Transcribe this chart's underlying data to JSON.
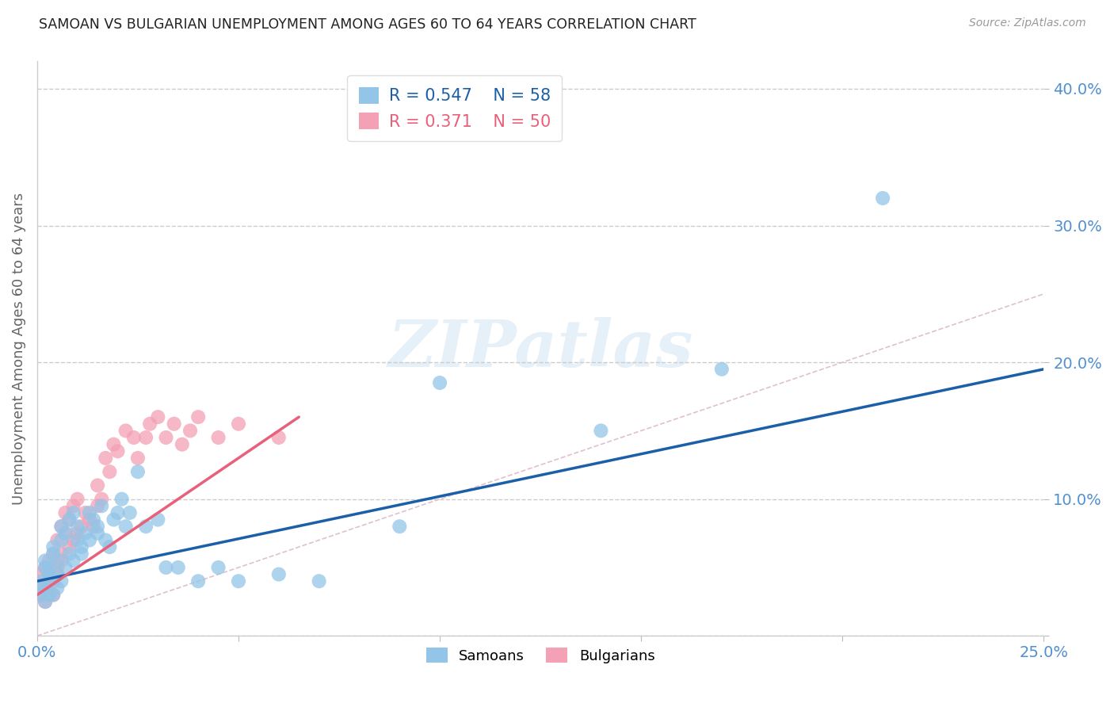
{
  "title": "SAMOAN VS BULGARIAN UNEMPLOYMENT AMONG AGES 60 TO 64 YEARS CORRELATION CHART",
  "source": "Source: ZipAtlas.com",
  "ylabel": "Unemployment Among Ages 60 to 64 years",
  "xlim": [
    0.0,
    0.25
  ],
  "ylim": [
    0.0,
    0.42
  ],
  "watermark_text": "ZIPatlas",
  "samoan_color": "#92C5E8",
  "bulgarian_color": "#F4A0B5",
  "samoan_line_color": "#1A5FA8",
  "bulgarian_line_color": "#E8607A",
  "diag_line_color": "#DDB8CC",
  "background_color": "#FFFFFF",
  "grid_color": "#CCCCCC",
  "tick_label_color": "#5090D0",
  "title_color": "#222222",
  "ylabel_color": "#666666",
  "legend_R_samoan": "R = 0.547",
  "legend_N_samoan": "N = 58",
  "legend_R_bulg": "R = 0.371",
  "legend_N_bulg": "N = 50",
  "samoans_x": [
    0.001,
    0.002,
    0.001,
    0.003,
    0.002,
    0.001,
    0.003,
    0.004,
    0.002,
    0.003,
    0.004,
    0.005,
    0.003,
    0.005,
    0.004,
    0.006,
    0.005,
    0.006,
    0.007,
    0.006,
    0.008,
    0.007,
    0.009,
    0.008,
    0.01,
    0.009,
    0.011,
    0.01,
    0.012,
    0.011,
    0.013,
    0.014,
    0.013,
    0.015,
    0.016,
    0.015,
    0.017,
    0.018,
    0.019,
    0.02,
    0.022,
    0.021,
    0.023,
    0.025,
    0.027,
    0.03,
    0.032,
    0.035,
    0.04,
    0.045,
    0.05,
    0.06,
    0.07,
    0.09,
    0.1,
    0.14,
    0.17,
    0.21
  ],
  "samoans_y": [
    0.03,
    0.025,
    0.04,
    0.03,
    0.05,
    0.035,
    0.045,
    0.03,
    0.055,
    0.04,
    0.06,
    0.035,
    0.05,
    0.045,
    0.065,
    0.04,
    0.055,
    0.07,
    0.05,
    0.08,
    0.06,
    0.075,
    0.055,
    0.085,
    0.07,
    0.09,
    0.065,
    0.08,
    0.075,
    0.06,
    0.07,
    0.085,
    0.09,
    0.08,
    0.095,
    0.075,
    0.07,
    0.065,
    0.085,
    0.09,
    0.08,
    0.1,
    0.09,
    0.12,
    0.08,
    0.085,
    0.05,
    0.05,
    0.04,
    0.05,
    0.04,
    0.045,
    0.04,
    0.08,
    0.185,
    0.15,
    0.195,
    0.32
  ],
  "bulgarians_x": [
    0.001,
    0.002,
    0.001,
    0.002,
    0.003,
    0.002,
    0.003,
    0.004,
    0.003,
    0.004,
    0.005,
    0.004,
    0.005,
    0.006,
    0.005,
    0.006,
    0.007,
    0.006,
    0.008,
    0.007,
    0.009,
    0.008,
    0.01,
    0.009,
    0.011,
    0.01,
    0.012,
    0.013,
    0.014,
    0.015,
    0.015,
    0.016,
    0.017,
    0.018,
    0.019,
    0.02,
    0.022,
    0.024,
    0.025,
    0.027,
    0.028,
    0.03,
    0.032,
    0.034,
    0.036,
    0.038,
    0.04,
    0.045,
    0.05,
    0.06
  ],
  "bulgarians_y": [
    0.03,
    0.025,
    0.045,
    0.035,
    0.03,
    0.05,
    0.04,
    0.03,
    0.055,
    0.04,
    0.05,
    0.06,
    0.045,
    0.055,
    0.07,
    0.06,
    0.075,
    0.08,
    0.065,
    0.09,
    0.07,
    0.085,
    0.075,
    0.095,
    0.08,
    0.1,
    0.09,
    0.085,
    0.08,
    0.095,
    0.11,
    0.1,
    0.13,
    0.12,
    0.14,
    0.135,
    0.15,
    0.145,
    0.13,
    0.145,
    0.155,
    0.16,
    0.145,
    0.155,
    0.14,
    0.15,
    0.16,
    0.145,
    0.155,
    0.145
  ],
  "samoan_line_x": [
    0.0,
    0.25
  ],
  "samoan_line_y": [
    0.04,
    0.195
  ],
  "bulgarian_line_x": [
    0.0,
    0.065
  ],
  "bulgarian_line_y": [
    0.03,
    0.16
  ]
}
